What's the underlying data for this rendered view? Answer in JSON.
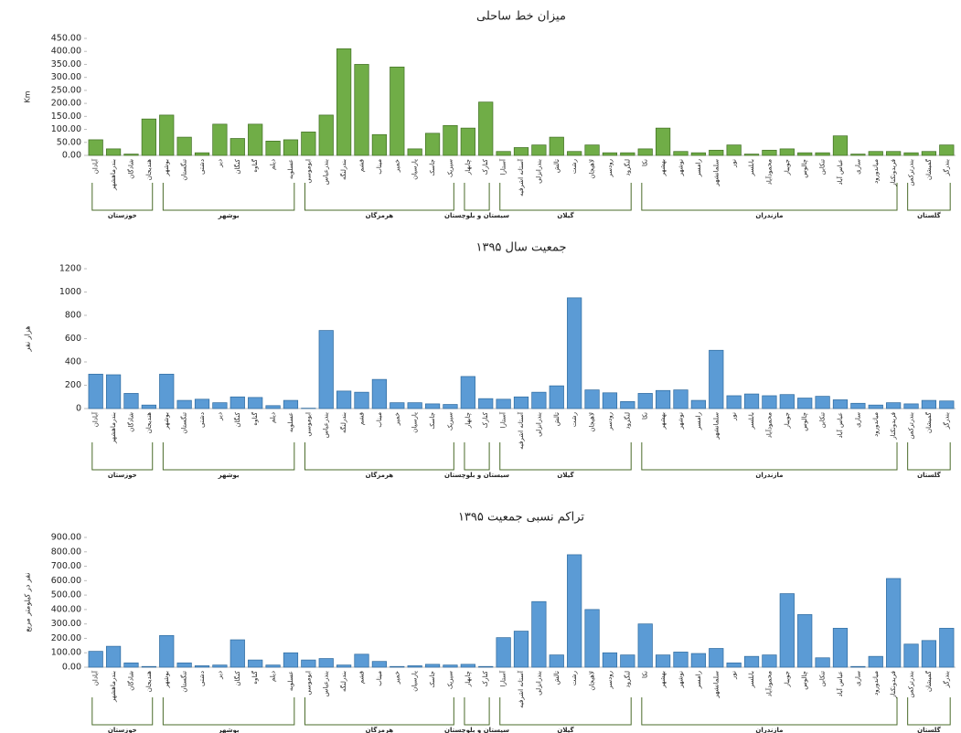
{
  "chart_data": [
    {
      "type": "bar",
      "title": "میزان خط ساحلی",
      "y_label": "Km",
      "color": "#70ad47",
      "grid": false,
      "ylim": [
        0,
        450
      ],
      "yticks": [
        {
          "value": 0,
          "label": "0.00"
        },
        {
          "value": 50,
          "label": "50.00"
        },
        {
          "value": 100,
          "label": "100.00"
        },
        {
          "value": 150,
          "label": "150.00"
        },
        {
          "value": 200,
          "label": "200.00"
        },
        {
          "value": 250,
          "label": "250.00"
        },
        {
          "value": 300,
          "label": "300.00"
        },
        {
          "value": 350,
          "label": "350.00"
        },
        {
          "value": 400,
          "label": "400.00"
        },
        {
          "value": 450,
          "label": "450.00"
        }
      ],
      "groups": [
        {
          "name": "خوزستان",
          "categories": [
            "آبادان",
            "بندرماهشهر",
            "شادگان",
            "هندیجان"
          ]
        },
        {
          "name": "بوشهر",
          "categories": [
            "بوشهر",
            "تنگستان",
            "دشتی",
            "دیر",
            "کنگان",
            "گناوه",
            "دیلم",
            "عسلویه"
          ]
        },
        {
          "name": "هرمزگان",
          "categories": [
            "ابوموسی",
            "بندرعباس",
            "بندرلنگه",
            "قشم",
            "میناب",
            "خمیر",
            "پارسیان",
            "جاسک",
            "سیریک"
          ]
        },
        {
          "name": "سیستان و بلوچستان",
          "categories": [
            "چابهار",
            "کنارک"
          ]
        },
        {
          "name": "گیلان",
          "categories": [
            "آستارا",
            "آستانه اشرفیه",
            "بندرانزلی",
            "تالش",
            "رشت",
            "لاهیجان",
            "رودسر",
            "لنگرود"
          ]
        },
        {
          "name": "مازندران",
          "categories": [
            "نکا",
            "بهشهر",
            "نوشهر",
            "رامسر",
            "سلمانشهر",
            "نور",
            "بابلسر",
            "محمودآباد",
            "جویبار",
            "چالوس",
            "تنکابن",
            "عباس آباد",
            "ساری",
            "میاندورود",
            "فریدونکنار"
          ]
        },
        {
          "name": "گلستان",
          "categories": [
            "بندرترکمن",
            "گمیشان",
            "بندرگز"
          ]
        }
      ],
      "values": [
        60,
        25,
        5,
        140,
        155,
        70,
        10,
        120,
        65,
        120,
        55,
        60,
        90,
        155,
        410,
        350,
        80,
        340,
        25,
        85,
        115,
        105,
        205,
        15,
        30,
        40,
        70,
        15,
        40,
        10,
        10,
        25,
        105,
        15,
        10,
        20,
        40,
        5,
        20,
        25,
        10,
        10,
        75,
        5,
        15,
        15,
        10,
        15,
        40
      ]
    },
    {
      "type": "bar",
      "title": "جمعیت سال ۱۳۹۵",
      "y_label": "هزار نفر",
      "color": "#5b9bd5",
      "grid": false,
      "ylim": [
        0,
        1200
      ],
      "yticks": [
        0,
        200,
        400,
        600,
        800,
        1000,
        1200
      ],
      "groups": [
        {
          "name": "خوزستان",
          "categories": [
            "آبادان",
            "بندرماهشهر",
            "شادگان",
            "هندیجان"
          ]
        },
        {
          "name": "بوشهر",
          "categories": [
            "بوشهر",
            "تنگستان",
            "دشتی",
            "دیر",
            "کنگان",
            "گناوه",
            "دیلم",
            "عسلویه"
          ]
        },
        {
          "name": "هرمزگان",
          "categories": [
            "ابوموسی",
            "بندرعباس",
            "بندرلنگه",
            "قشم",
            "میناب",
            "خمیر",
            "پارسیان",
            "جاسک",
            "سیریک"
          ]
        },
        {
          "name": "سیستان و بلوچستان",
          "categories": [
            "چابهار",
            "کنارک"
          ]
        },
        {
          "name": "گیلان",
          "categories": [
            "آستارا",
            "آستانه اشرفیه",
            "بندرانزلی",
            "تالش",
            "رشت",
            "لاهیجان",
            "رودسر",
            "لنگرود"
          ]
        },
        {
          "name": "مازندران",
          "categories": [
            "نکا",
            "بهشهر",
            "نوشهر",
            "رامسر",
            "سلمانشهر",
            "نور",
            "بابلسر",
            "محمودآباد",
            "جویبار",
            "چالوس",
            "تنکابن",
            "عباس آباد",
            "ساری",
            "میاندورود",
            "فریدونکنار"
          ]
        },
        {
          "name": "گلستان",
          "categories": [
            "بندرترکمن",
            "گمیشان",
            "بندرگز"
          ]
        }
      ],
      "values": [
        295,
        290,
        130,
        30,
        295,
        70,
        80,
        50,
        100,
        95,
        25,
        70,
        3,
        670,
        150,
        140,
        250,
        50,
        50,
        40,
        35,
        275,
        85,
        80,
        100,
        140,
        195,
        950,
        160,
        135,
        60,
        130,
        155,
        160,
        70,
        500,
        110,
        125,
        110,
        120,
        90,
        105,
        75,
        45,
        30,
        50,
        40,
        70,
        65
      ]
    },
    {
      "type": "bar",
      "title": "تراکم نسبی جمعیت ۱۳۹۵",
      "y_label": "نفر در کیلومتر مربع",
      "color": "#5b9bd5",
      "grid": false,
      "ylim": [
        0,
        900
      ],
      "yticks": [
        {
          "value": 0,
          "label": "0.00"
        },
        {
          "value": 100,
          "label": "100.00"
        },
        {
          "value": 200,
          "label": "200.00"
        },
        {
          "value": 300,
          "label": "300.00"
        },
        {
          "value": 400,
          "label": "400.00"
        },
        {
          "value": 500,
          "label": "500.00"
        },
        {
          "value": 600,
          "label": "600.00"
        },
        {
          "value": 700,
          "label": "700.00"
        },
        {
          "value": 800,
          "label": "800.00"
        },
        {
          "value": 900,
          "label": "900.00"
        }
      ],
      "groups": [
        {
          "name": "خوزستان",
          "categories": [
            "آبادان",
            "بندرماهشهر",
            "شادگان",
            "هندیجان"
          ]
        },
        {
          "name": "بوشهر",
          "categories": [
            "بوشهر",
            "تنگستان",
            "دشتی",
            "دیر",
            "کنگان",
            "گناوه",
            "دیلم",
            "عسلویه"
          ]
        },
        {
          "name": "هرمزگان",
          "categories": [
            "ابوموسی",
            "بندرعباس",
            "بندرلنگه",
            "قشم",
            "میناب",
            "خمیر",
            "پارسیان",
            "جاسک",
            "سیریک"
          ]
        },
        {
          "name": "سیستان و بلوچستان",
          "categories": [
            "چابهار",
            "کنارک"
          ]
        },
        {
          "name": "گیلان",
          "categories": [
            "آستارا",
            "آستانه اشرفیه",
            "بندرانزلی",
            "تالش",
            "رشت",
            "لاهیجان",
            "رودسر",
            "لنگرود"
          ]
        },
        {
          "name": "مازندران",
          "categories": [
            "نکا",
            "بهشهر",
            "نوشهر",
            "رامسر",
            "سلمانشهر",
            "نور",
            "بابلسر",
            "محمودآباد",
            "جویبار",
            "چالوس",
            "تنکابن",
            "عباس آباد",
            "ساری",
            "میاندورود",
            "فریدونکنار"
          ]
        },
        {
          "name": "گلستان",
          "categories": [
            "بندرترکمن",
            "گمیشان",
            "بندرگز"
          ]
        }
      ],
      "values": [
        110,
        145,
        30,
        5,
        220,
        30,
        10,
        15,
        190,
        50,
        15,
        100,
        50,
        60,
        15,
        90,
        40,
        5,
        10,
        20,
        15,
        20,
        5,
        205,
        250,
        455,
        85,
        780,
        400,
        100,
        85,
        300,
        85,
        105,
        95,
        130,
        30,
        75,
        85,
        510,
        365,
        65,
        270,
        5,
        75,
        615,
        160,
        185,
        270
      ]
    }
  ]
}
